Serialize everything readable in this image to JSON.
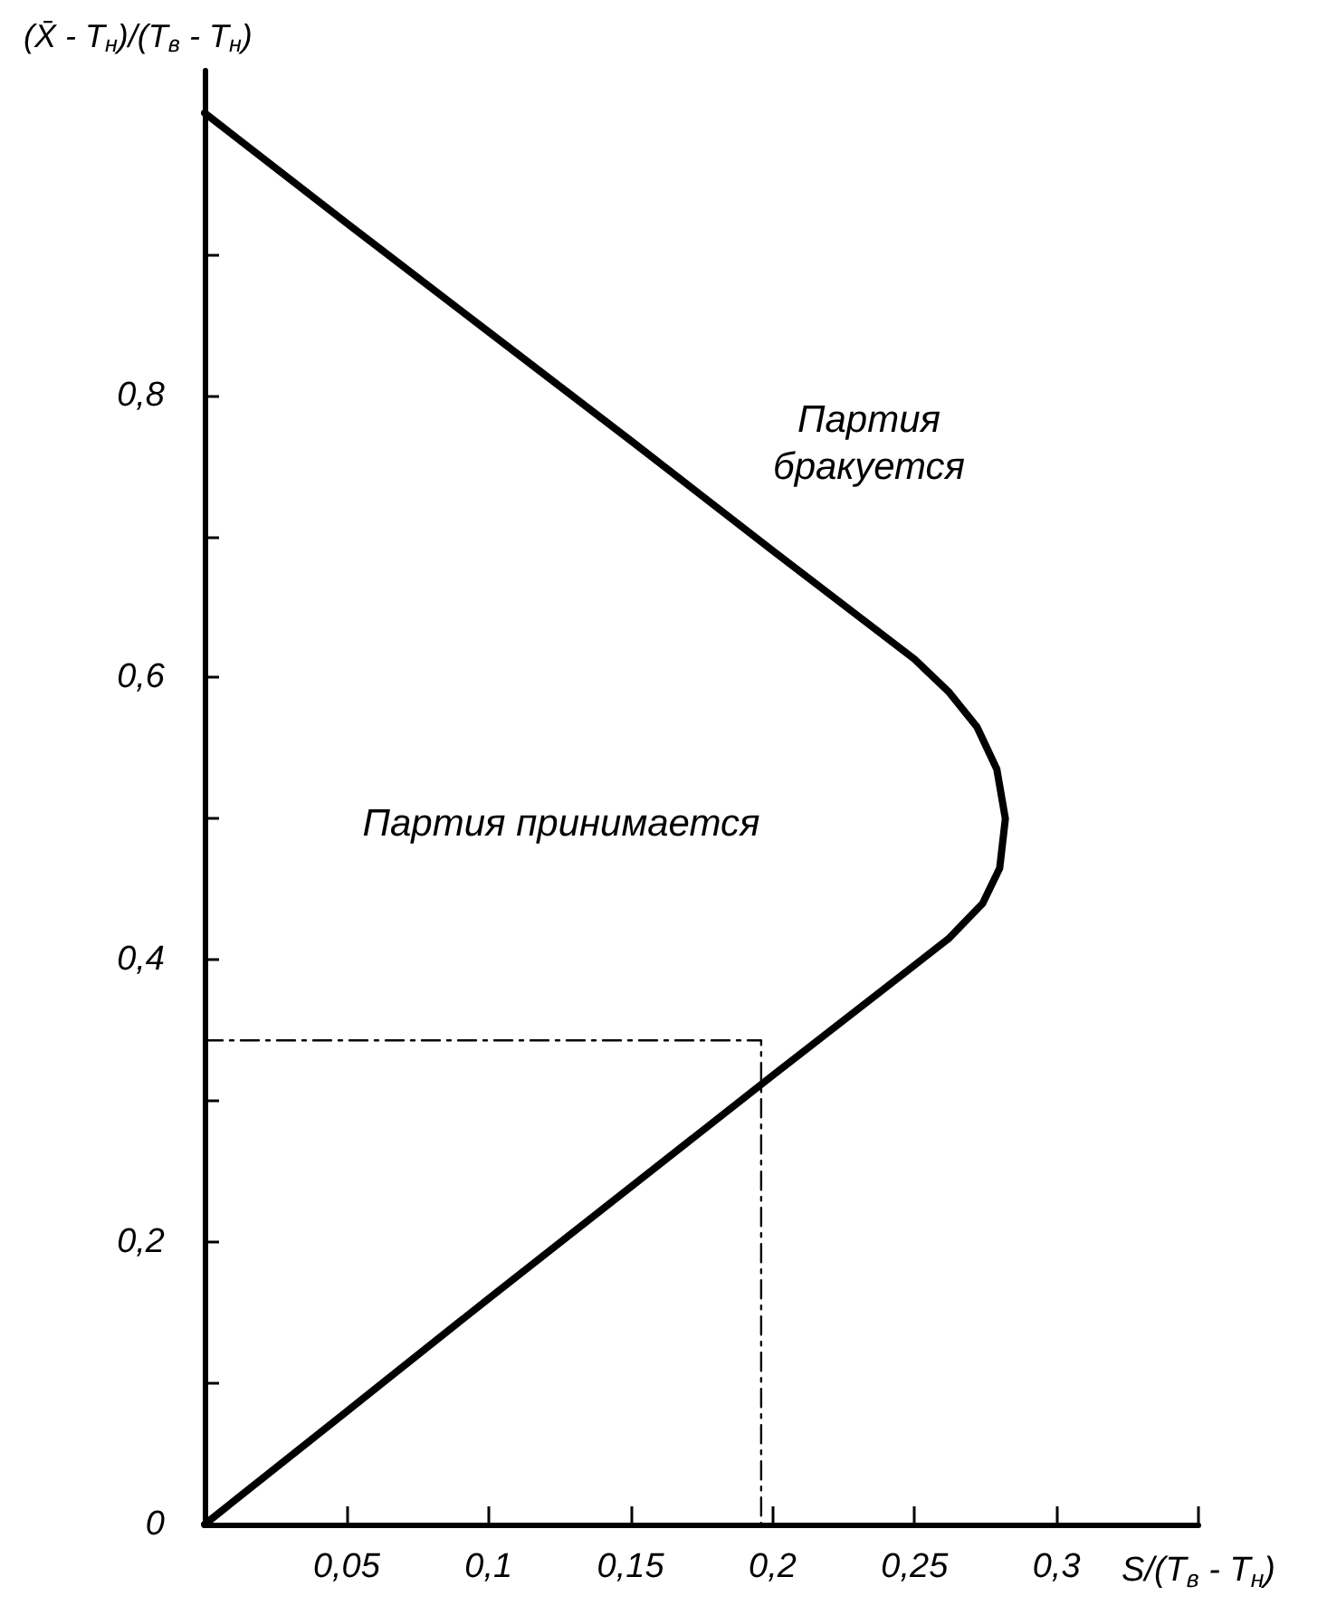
{
  "chart_data": {
    "type": "line",
    "xlabel": "S/(T$_{в}$ - T$_{н}$)",
    "ylabel": "(X̄ - T$_{н}$)/(T$_{в}$ - T$_{н}$)",
    "xlim": [
      0,
      0.35
    ],
    "ylim": [
      0,
      1.03
    ],
    "xticks": [
      {
        "value": 0,
        "label": null
      },
      {
        "value": 0.05,
        "label": "0,05"
      },
      {
        "value": 0.1,
        "label": "0,1"
      },
      {
        "value": 0.15,
        "label": "0,15"
      },
      {
        "value": 0.2,
        "label": "0,2"
      },
      {
        "value": 0.25,
        "label": "0,25"
      },
      {
        "value": 0.3,
        "label": "0,3"
      },
      {
        "value": 0.35,
        "label": null
      }
    ],
    "yticks": [
      0,
      {
        "value": 0.1,
        "label": null
      },
      {
        "value": 0.2,
        "label": "0,2"
      },
      {
        "value": 0.3,
        "label": null
      },
      {
        "value": 0.4,
        "label": "0,4"
      },
      {
        "value": 0.5,
        "label": null
      },
      {
        "value": 0.6,
        "label": "0,6"
      },
      {
        "value": 0.7,
        "label": null
      },
      {
        "value": 0.8,
        "label": "0,8"
      },
      {
        "value": 0.9,
        "label": null
      }
    ],
    "grid": false,
    "marker": "none",
    "series": [
      {
        "color": "#000000",
        "line_style": "solid",
        "x": [
          0,
          0.05,
          0.1,
          0.15,
          0.2,
          0.25,
          0.262,
          0.272,
          0.279,
          0.282,
          0.28,
          0.274,
          0.262,
          0.2,
          0.1,
          0.05,
          0
        ],
        "values": [
          1.0,
          0.922,
          0.845,
          0.768,
          0.69,
          0.613,
          0.59,
          0.565,
          0.535,
          0.5,
          0.465,
          0.44,
          0.415,
          0.318,
          0.16,
          0.08,
          0
        ]
      },
      {
        "color": "#000000",
        "line_style": "dashed",
        "x": [
          0,
          0.196,
          0.196
        ],
        "values": [
          0.343,
          0.343,
          0
        ]
      }
    ],
    "annotations": [
      "Партия\nбракуется",
      "Партия принимается"
    ]
  }
}
